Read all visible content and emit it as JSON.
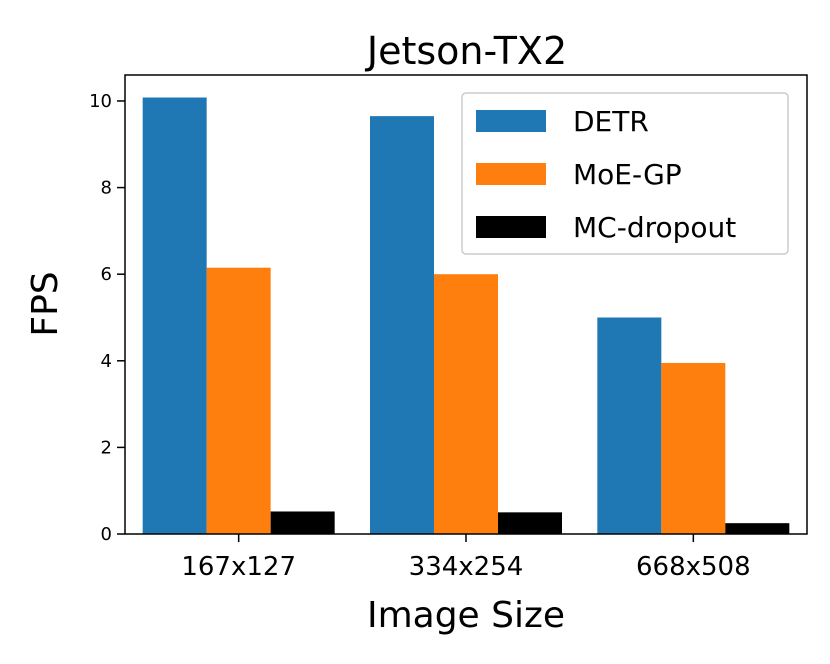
{
  "chart_data": {
    "type": "bar",
    "title": "Jetson-TX2",
    "xlabel": "Image Size",
    "ylabel": "FPS",
    "categories": [
      "167x127",
      "334x254",
      "668x508"
    ],
    "series": [
      {
        "name": "DETR",
        "color": "#1f77b4",
        "values": [
          10.08,
          9.65,
          5.0
        ]
      },
      {
        "name": "MoE-GP",
        "color": "#ff7f0e",
        "values": [
          6.15,
          6.0,
          3.95
        ]
      },
      {
        "name": "MC-dropout",
        "color": "#000000",
        "values": [
          0.52,
          0.5,
          0.25
        ]
      }
    ],
    "ylim": [
      0,
      10.6
    ],
    "yticks": [
      0,
      2,
      4,
      6,
      8,
      10
    ],
    "grid": false,
    "legend_position": "top-right"
  }
}
